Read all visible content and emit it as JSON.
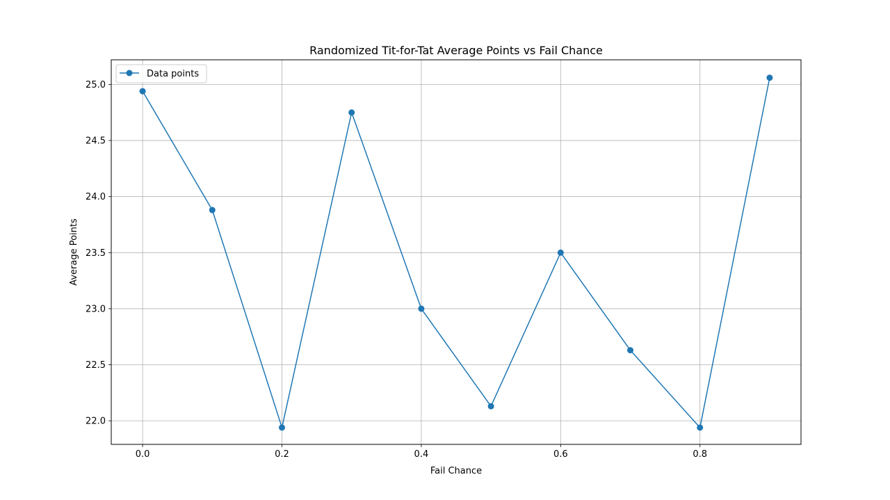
{
  "chart_data": {
    "type": "line",
    "title": "Randomized Tit-for-Tat Average Points vs Fail Chance",
    "xlabel": "Fail Chance",
    "ylabel": "Average Points",
    "xlim": [
      -0.045,
      0.945
    ],
    "ylim": [
      21.79,
      25.22
    ],
    "x_ticks": [
      0.0,
      0.2,
      0.4,
      0.6,
      0.8
    ],
    "x_tick_labels": [
      "0.0",
      "0.2",
      "0.4",
      "0.6",
      "0.8"
    ],
    "y_ticks": [
      22.0,
      22.5,
      23.0,
      23.5,
      24.0,
      24.5,
      25.0
    ],
    "y_tick_labels": [
      "22.0",
      "22.5",
      "23.0",
      "23.5",
      "24.0",
      "24.5",
      "25.0"
    ],
    "grid": true,
    "legend_position": "top-left",
    "series": [
      {
        "name": "Data points",
        "color": "#1f77b4",
        "marker": "circle",
        "x": [
          0.0,
          0.1,
          0.2,
          0.3,
          0.4,
          0.5,
          0.6,
          0.7,
          0.8,
          0.9
        ],
        "y": [
          24.94,
          23.88,
          21.94,
          24.75,
          23.0,
          22.13,
          23.5,
          22.63,
          21.94,
          25.06
        ]
      }
    ]
  }
}
